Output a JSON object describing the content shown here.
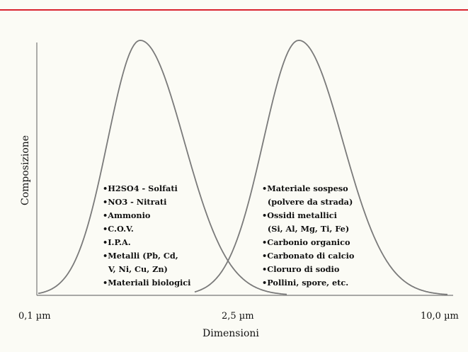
{
  "chart_data": {
    "type": "line",
    "xlabel": "Dimensioni",
    "ylabel": "Composizione",
    "x_ticks": [
      "0,1 µm",
      "2,5 µm",
      "10,0 µm"
    ],
    "colors": {
      "top_rule": "#d9232e",
      "curve": "#7a7a7a",
      "axis": "#777777"
    },
    "series": [
      {
        "x_range": [
          "0,1 µm",
          "2,5 µm"
        ],
        "peak_x_fraction_of_fine_range": 0.48,
        "items": [
          "•H2SO4 - Solfati",
          "•NO3 - Nitrati",
          "•Ammonio",
          "•C.O.V.",
          "•I.P.A.",
          "•Metalli (Pb, Cd,",
          "  V, Ni, Cu, Zn)",
          "•Materiali biologici"
        ]
      },
      {
        "x_range": [
          "2,5 µm",
          "10,0 µm"
        ],
        "peak_x_fraction_of_coarse_range": 0.33,
        "items": [
          "•Materiale sospeso",
          "  (polvere da strada)",
          "•Ossidi metallici",
          "  (Si, Al, Mg, Ti, Fe)",
          "•Carbonio organico",
          "•Carbonato di calcio",
          "•Cloruro di sodio",
          "•Pollini, spore, etc."
        ]
      }
    ]
  }
}
